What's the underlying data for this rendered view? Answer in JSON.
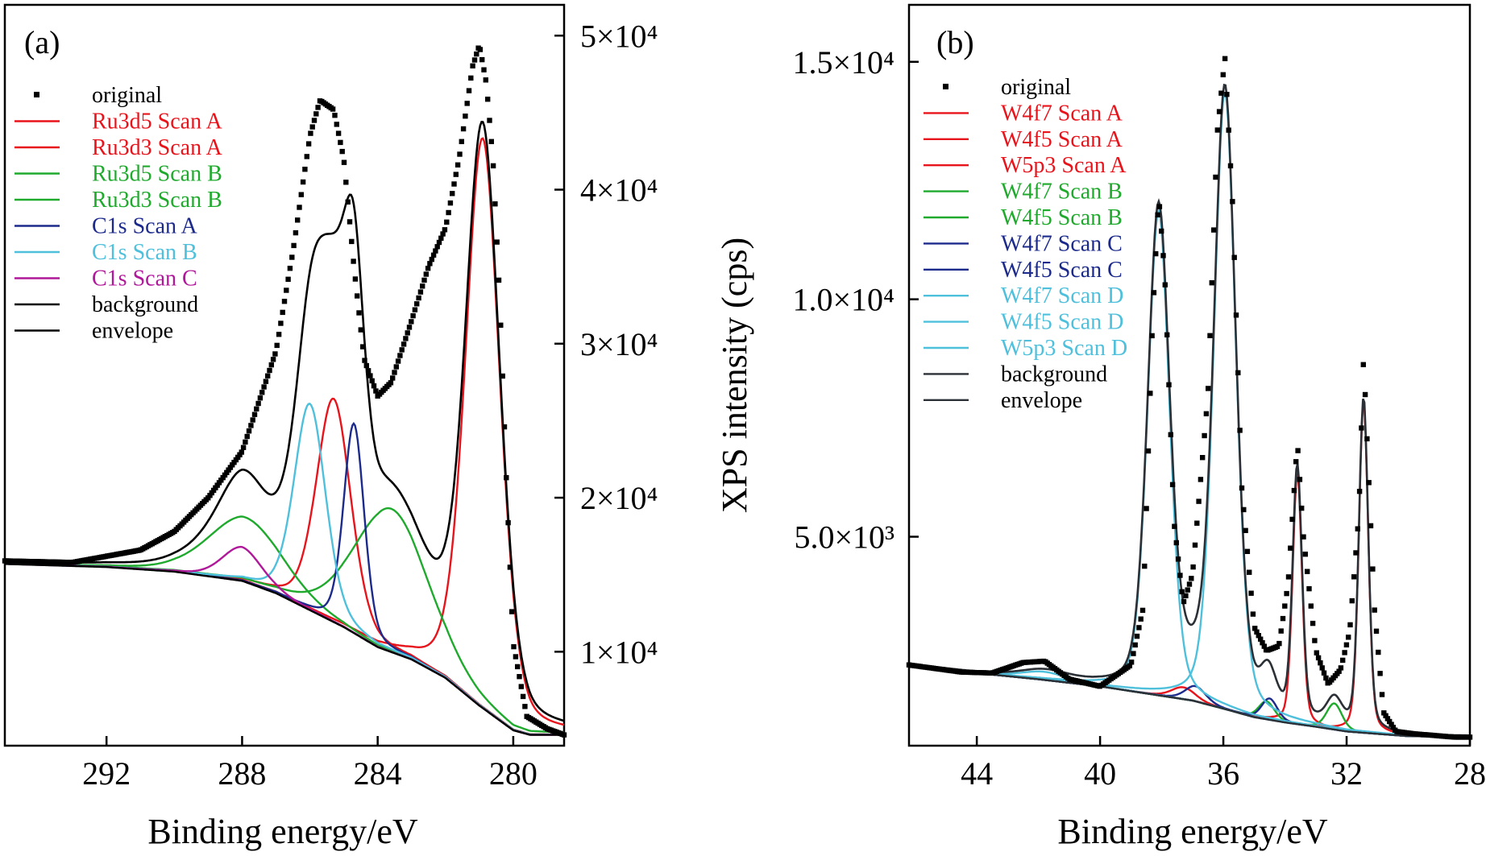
{
  "colors": {
    "red": "#e8141c",
    "green": "#1faa2d",
    "navy": "#1c2a8c",
    "cyan": "#4fc0dc",
    "magenta": "#b0189a",
    "black": "#000000",
    "dark": "#2b3036"
  },
  "chart_data": [
    {
      "type": "line",
      "panel_label": "(a)",
      "xlabel": "Binding energy/eV",
      "ylabel": "",
      "x_reversed": true,
      "xlim": [
        295,
        278.5
      ],
      "ylim": [
        3900,
        52000
      ],
      "y_axis_side": "right",
      "grid": false,
      "legend_position": "top-left",
      "x_ticks": [
        292,
        288,
        284,
        280
      ],
      "x_tick_labels": [
        "292",
        "288",
        "284",
        "280"
      ],
      "y_ticks": [
        10000,
        20000,
        30000,
        40000,
        50000
      ],
      "y_tick_labels": [
        "1×10⁴",
        "2×10⁴",
        "3×10⁴",
        "4×10⁴",
        "5×10⁴"
      ],
      "legend": [
        {
          "label": "original",
          "kind": "marker",
          "color": "#000000"
        },
        {
          "label": "Ru3d5 Scan A",
          "kind": "line",
          "color": "#e8141c"
        },
        {
          "label": "Ru3d3 Scan A",
          "kind": "line",
          "color": "#e8141c"
        },
        {
          "label": "Ru3d5 Scan B",
          "kind": "line",
          "color": "#1faa2d"
        },
        {
          "label": "Ru3d3 Scan B",
          "kind": "line",
          "color": "#1faa2d"
        },
        {
          "label": "C1s Scan A",
          "kind": "line",
          "color": "#1c2a8c"
        },
        {
          "label": "C1s Scan B",
          "kind": "line",
          "color": "#4fc0dc"
        },
        {
          "label": "C1s Scan C",
          "kind": "line",
          "color": "#b0189a"
        },
        {
          "label": "background",
          "kind": "line",
          "color": "#000000"
        },
        {
          "label": "envelope",
          "kind": "line",
          "color": "#000000"
        }
      ],
      "background": {
        "points": [
          [
            295,
            15700
          ],
          [
            292,
            15500
          ],
          [
            290,
            15200
          ],
          [
            288,
            14600
          ],
          [
            287,
            13800
          ],
          [
            286,
            12700
          ],
          [
            285,
            11600
          ],
          [
            284,
            10300
          ],
          [
            283,
            9500
          ],
          [
            282,
            8300
          ],
          [
            281,
            6500
          ],
          [
            280,
            4900
          ],
          [
            279.5,
            4600
          ],
          [
            278.5,
            4600
          ]
        ]
      },
      "components": [
        {
          "name": "Ru3d5 Scan A",
          "color": "#e8141c",
          "center": 280.9,
          "height": 37000,
          "width": 0.6
        },
        {
          "name": "Ru3d3 Scan A",
          "color": "#e8141c",
          "center": 285.3,
          "height": 14500,
          "width": 0.6
        },
        {
          "name": "Ru3d5 Scan B",
          "color": "#1faa2d",
          "center": 283.6,
          "height": 9300,
          "width": 1.3
        },
        {
          "name": "Ru3d3 Scan B",
          "color": "#1faa2d",
          "center": 287.9,
          "height": 4200,
          "width": 1.3
        },
        {
          "name": "C1s Scan A",
          "color": "#1c2a8c",
          "center": 284.7,
          "height": 13600,
          "width": 0.36
        },
        {
          "name": "C1s Scan B",
          "color": "#4fc0dc",
          "center": 286.0,
          "height": 13400,
          "width": 0.55
        },
        {
          "name": "C1s Scan C",
          "color": "#b0189a",
          "center": 288.0,
          "height": 2200,
          "width": 0.7
        }
      ],
      "original": {
        "points": [
          [
            295,
            15900
          ],
          [
            293,
            15800
          ],
          [
            291,
            16600
          ],
          [
            290,
            17800
          ],
          [
            289,
            20000
          ],
          [
            288,
            23000
          ],
          [
            287,
            29500
          ],
          [
            286.5,
            36000
          ],
          [
            286,
            43500
          ],
          [
            285.7,
            45800
          ],
          [
            285.3,
            45200
          ],
          [
            285,
            42000
          ],
          [
            284.7,
            35000
          ],
          [
            284.4,
            29000
          ],
          [
            284,
            26600
          ],
          [
            283.6,
            27500
          ],
          [
            283,
            31500
          ],
          [
            282.5,
            35000
          ],
          [
            282,
            37500
          ],
          [
            281.6,
            42000
          ],
          [
            281.2,
            48000
          ],
          [
            281,
            49400
          ],
          [
            280.8,
            47000
          ],
          [
            280.6,
            42000
          ],
          [
            280.4,
            33000
          ],
          [
            280.2,
            21000
          ],
          [
            280,
            10500
          ],
          [
            279.6,
            5800
          ],
          [
            279,
            5000
          ],
          [
            278.5,
            4600
          ]
        ]
      }
    },
    {
      "type": "line",
      "panel_label": "(b)",
      "xlabel": "Binding energy/eV",
      "ylabel": "XPS intensity (cps)",
      "x_reversed": true,
      "xlim": [
        46.2,
        28
      ],
      "ylim": [
        600,
        16200
      ],
      "y_axis_side": "left",
      "grid": false,
      "legend_position": "top-left",
      "x_ticks": [
        44,
        40,
        36,
        32,
        28
      ],
      "x_tick_labels": [
        "44",
        "40",
        "36",
        "32",
        "28"
      ],
      "y_ticks": [
        5000,
        10000,
        15000
      ],
      "y_tick_labels": [
        "5.0×10³",
        "1.0×10⁴",
        "1.5×10⁴"
      ],
      "legend": [
        {
          "label": "original",
          "kind": "marker",
          "color": "#000000"
        },
        {
          "label": "W4f7 Scan A",
          "kind": "line",
          "color": "#e8141c"
        },
        {
          "label": "W4f5 Scan A",
          "kind": "line",
          "color": "#e8141c"
        },
        {
          "label": "W5p3 Scan A",
          "kind": "line",
          "color": "#e8141c"
        },
        {
          "label": "W4f7 Scan B",
          "kind": "line",
          "color": "#1faa2d"
        },
        {
          "label": "W4f5 Scan B",
          "kind": "line",
          "color": "#1faa2d"
        },
        {
          "label": "W4f7 Scan C",
          "kind": "line",
          "color": "#1c2a8c"
        },
        {
          "label": "W4f5 Scan C",
          "kind": "line",
          "color": "#1c2a8c"
        },
        {
          "label": "W4f7 Scan D",
          "kind": "line",
          "color": "#4fc0dc"
        },
        {
          "label": "W4f5 Scan D",
          "kind": "line",
          "color": "#4fc0dc"
        },
        {
          "label": "W5p3 Scan D",
          "kind": "line",
          "color": "#4fc0dc"
        },
        {
          "label": "background",
          "kind": "line",
          "color": "#2b3036"
        },
        {
          "label": "envelope",
          "kind": "line",
          "color": "#2b3036"
        }
      ],
      "background": {
        "points": [
          [
            46.2,
            2300
          ],
          [
            44,
            2130
          ],
          [
            42,
            2000
          ],
          [
            40,
            1850
          ],
          [
            38,
            1650
          ],
          [
            37,
            1550
          ],
          [
            36,
            1380
          ],
          [
            35,
            1200
          ],
          [
            34,
            1090
          ],
          [
            33,
            1000
          ],
          [
            32,
            900
          ],
          [
            31,
            850
          ],
          [
            30,
            800
          ],
          [
            28.5,
            790
          ]
        ]
      },
      "components": [
        {
          "name": "W4f7 Scan A",
          "color": "#e8141c",
          "center": 31.45,
          "height": 7000,
          "width": 0.18
        },
        {
          "name": "W4f5 Scan A",
          "color": "#e8141c",
          "center": 33.6,
          "height": 5300,
          "width": 0.18
        },
        {
          "name": "W5p3 Scan A",
          "color": "#e8141c",
          "center": 37.3,
          "height": 250,
          "width": 0.45
        },
        {
          "name": "W4f7 Scan B",
          "color": "#1faa2d",
          "center": 32.4,
          "height": 550,
          "width": 0.3
        },
        {
          "name": "W4f5 Scan B",
          "color": "#1faa2d",
          "center": 34.6,
          "height": 380,
          "width": 0.3
        },
        {
          "name": "W4f7 Scan C",
          "color": "#1c2a8c",
          "center": 34.5,
          "height": 450,
          "width": 0.3
        },
        {
          "name": "W4f5 Scan C",
          "color": "#1c2a8c",
          "center": 36.9,
          "height": 320,
          "width": 0.4
        },
        {
          "name": "W4f7 Scan D",
          "color": "#4fc0dc",
          "center": 35.95,
          "height": 13000,
          "width": 0.42
        },
        {
          "name": "W4f5 Scan D",
          "color": "#4fc0dc",
          "center": 38.1,
          "height": 10200,
          "width": 0.42
        },
        {
          "name": "W5p3 Scan D",
          "color": "#4fc0dc",
          "center": 41.8,
          "height": 170,
          "width": 0.9
        }
      ],
      "original": {
        "points": [
          [
            46.2,
            2300
          ],
          [
            44.5,
            2150
          ],
          [
            43.5,
            2130
          ],
          [
            42.5,
            2350
          ],
          [
            41.8,
            2380
          ],
          [
            41,
            2000
          ],
          [
            40,
            1850
          ],
          [
            39,
            2300
          ],
          [
            38.6,
            3500
          ],
          [
            38.3,
            9500
          ],
          [
            38.1,
            12200
          ],
          [
            37.9,
            10500
          ],
          [
            37.6,
            5300
          ],
          [
            37.3,
            3600
          ],
          [
            37,
            4200
          ],
          [
            36.5,
            8000
          ],
          [
            36.2,
            13500
          ],
          [
            35.95,
            15100
          ],
          [
            35.7,
            12000
          ],
          [
            35.4,
            6000
          ],
          [
            35,
            3100
          ],
          [
            34.6,
            2600
          ],
          [
            34.2,
            2700
          ],
          [
            33.9,
            4000
          ],
          [
            33.6,
            7000
          ],
          [
            33.4,
            5000
          ],
          [
            33,
            2600
          ],
          [
            32.6,
            1900
          ],
          [
            32.2,
            2200
          ],
          [
            31.9,
            3000
          ],
          [
            31.6,
            5500
          ],
          [
            31.45,
            8800
          ],
          [
            31.3,
            6500
          ],
          [
            31.1,
            3500
          ],
          [
            30.8,
            1300
          ],
          [
            30.4,
            900
          ],
          [
            29.8,
            850
          ],
          [
            28.5,
            780
          ]
        ]
      }
    }
  ]
}
